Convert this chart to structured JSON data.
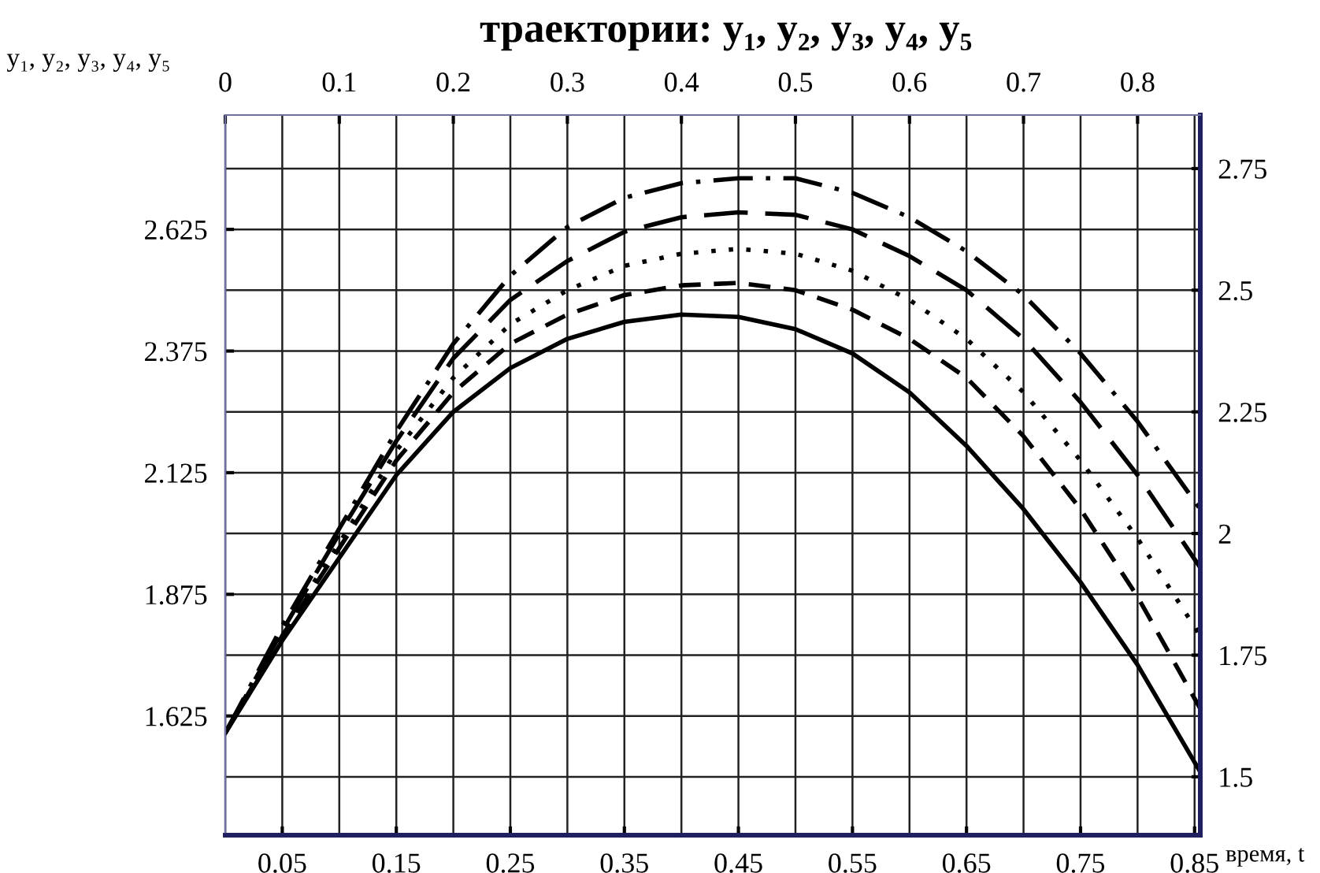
{
  "chart_data": {
    "type": "line",
    "title": "траектории: y₁, y₂, y₃, y₄, y₅",
    "ylabel": "y₁, y₂, y₃, y₄, y₅",
    "xlabel": "время, t",
    "x": [
      0,
      0.05,
      0.1,
      0.15,
      0.2,
      0.25,
      0.3,
      0.35,
      0.4,
      0.45,
      0.5,
      0.55,
      0.6,
      0.65,
      0.7,
      0.75,
      0.8,
      0.855
    ],
    "series": [
      {
        "color": "#000000",
        "line_style": "solid",
        "values": [
          1.59,
          1.78,
          1.95,
          2.12,
          2.25,
          2.34,
          2.4,
          2.435,
          2.45,
          2.445,
          2.42,
          2.37,
          2.29,
          2.18,
          2.05,
          1.9,
          1.73,
          1.51
        ]
      },
      {
        "color": "#000000",
        "line_style": "dashed",
        "values": [
          1.59,
          1.79,
          1.97,
          2.15,
          2.29,
          2.39,
          2.45,
          2.49,
          2.51,
          2.515,
          2.5,
          2.46,
          2.4,
          2.32,
          2.2,
          2.05,
          1.87,
          1.64
        ]
      },
      {
        "color": "#000000",
        "line_style": "dotted",
        "values": [
          1.59,
          1.8,
          1.98,
          2.17,
          2.32,
          2.43,
          2.5,
          2.55,
          2.575,
          2.585,
          2.575,
          2.54,
          2.48,
          2.4,
          2.29,
          2.15,
          1.99,
          1.79
        ]
      },
      {
        "color": "#000000",
        "line_style": "longdash",
        "values": [
          1.59,
          1.8,
          2.0,
          2.19,
          2.36,
          2.48,
          2.56,
          2.62,
          2.65,
          2.66,
          2.655,
          2.625,
          2.57,
          2.5,
          2.4,
          2.27,
          2.12,
          1.93
        ]
      },
      {
        "color": "#000000",
        "line_style": "dashdot",
        "values": [
          1.59,
          1.81,
          2.01,
          2.21,
          2.39,
          2.53,
          2.63,
          2.69,
          2.72,
          2.73,
          2.73,
          2.7,
          2.65,
          2.58,
          2.49,
          2.37,
          2.23,
          2.05
        ]
      }
    ],
    "xlim": [
      0,
      0.855
    ],
    "xticks": [
      0.05,
      0.15,
      0.25,
      0.35,
      0.45,
      0.55,
      0.65,
      0.75,
      0.85
    ],
    "x2lim": [
      0,
      0.855
    ],
    "x2ticks": [
      0,
      0.1,
      0.2,
      0.3,
      0.4,
      0.5,
      0.6,
      0.7,
      0.8
    ],
    "ylim": [
      1.38,
      2.86
    ],
    "yticks": [
      1.625,
      1.875,
      2.125,
      2.375,
      2.625
    ],
    "y2lim": [
      1.38,
      2.86
    ],
    "y2ticks": [
      1.5,
      1.75,
      2,
      2.25,
      2.5,
      2.75
    ],
    "grid": true,
    "legend": false,
    "marker": "none"
  }
}
